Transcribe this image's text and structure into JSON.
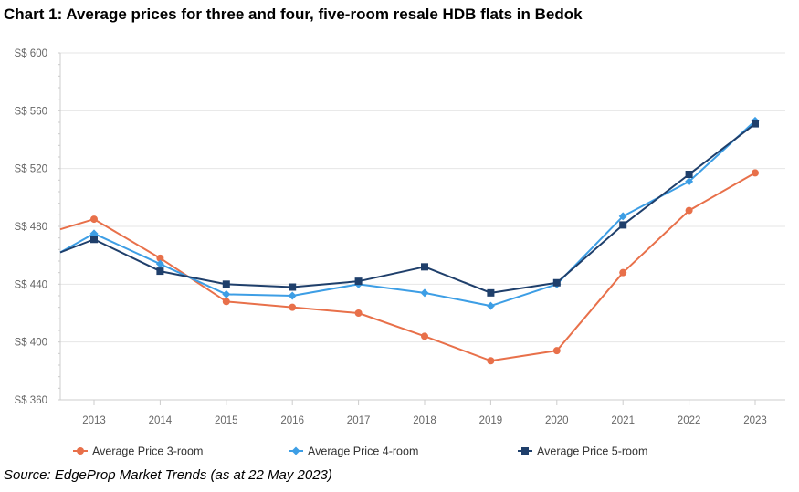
{
  "page": {
    "title": "Chart 1: Average prices for three and four, five-room resale HDB flats in Bedok",
    "source": "Source: EdgeProp Market Trends (as at 22 May 2023)"
  },
  "chart_data": {
    "type": "line",
    "title": "Chart 1: Average prices for three and four, five-room resale HDB flats in Bedok",
    "xlabel": "",
    "ylabel": "",
    "categories": [
      "2013",
      "2014",
      "2015",
      "2016",
      "2017",
      "2018",
      "2019",
      "2020",
      "2021",
      "2022",
      "2023"
    ],
    "ylim": [
      360,
      600
    ],
    "yticks": [
      360,
      400,
      440,
      480,
      520,
      560,
      600
    ],
    "ytick_labels": [
      "S$ 360",
      "S$ 400",
      "S$ 440",
      "S$ 480",
      "S$ 520",
      "S$ 560",
      "S$ 600"
    ],
    "grid": true,
    "legend_position": "bottom",
    "series": [
      {
        "name": "Average Price 3-room",
        "color": "#e8704a",
        "marker": "circle",
        "start_value": 478,
        "values": [
          485,
          458,
          428,
          424,
          420,
          404,
          387,
          394,
          448,
          491,
          517
        ]
      },
      {
        "name": "Average Price 4-room",
        "color": "#3d9ee5",
        "marker": "diamond",
        "start_value": 462,
        "values": [
          475,
          454,
          433,
          432,
          440,
          434,
          425,
          440,
          487,
          511,
          553
        ]
      },
      {
        "name": "Average Price 5-room",
        "color": "#1f3f6b",
        "marker": "square",
        "start_value": 462,
        "values": [
          471,
          449,
          440,
          438,
          442,
          452,
          434,
          441,
          481,
          516,
          551
        ]
      }
    ]
  }
}
